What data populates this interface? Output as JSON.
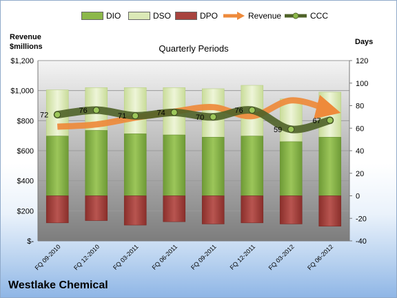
{
  "company": "Westlake Chemical",
  "colors": {
    "dio": "#8cb84a",
    "dso": "#dbe9b7",
    "dpo": "#a8443f",
    "revenue": "#ee8a3b",
    "ccc": "#4f6228"
  },
  "chart_data": {
    "type": "bar",
    "title": "Quarterly Periods",
    "ylabel_left": "Revenue $millions",
    "ylabel_right": "Days",
    "left_axis": {
      "min": 0,
      "max": 1200,
      "step": 200,
      "tick_labels": [
        "$-",
        "$200",
        "$400",
        "$600",
        "$800",
        "$1,000",
        "$1,200"
      ]
    },
    "right_axis": {
      "min": -40,
      "max": 120,
      "step": 20,
      "tick_labels": [
        "-40",
        "-20",
        "0",
        "20",
        "40",
        "60",
        "80",
        "100",
        "120"
      ]
    },
    "categories": [
      "FQ 09-2010",
      "FQ 12-2010",
      "FQ 03-2011",
      "FQ 06-2011",
      "FQ 09-2011",
      "FQ 12-2011",
      "FQ 03-2012",
      "FQ 06-2012"
    ],
    "legend": [
      "DIO",
      "DSO",
      "DPO",
      "Revenue",
      "CCC"
    ],
    "series": [
      {
        "name": "DIO",
        "axis": "right",
        "type": "stacked-bar",
        "values": [
          53,
          58,
          55,
          54,
          52,
          53,
          48,
          52
        ]
      },
      {
        "name": "DSO",
        "axis": "right",
        "type": "stacked-bar",
        "values": [
          41,
          38,
          41,
          42,
          43,
          45,
          38,
          40
        ]
      },
      {
        "name": "DPO",
        "axis": "right",
        "type": "bar-negative",
        "values": [
          -24,
          -22,
          -26,
          -23,
          -25,
          -24,
          -25,
          -27
        ]
      },
      {
        "name": "Revenue",
        "axis": "left",
        "type": "line",
        "values": [
          760,
          775,
          820,
          860,
          890,
          830,
          935,
          870
        ]
      },
      {
        "name": "CCC",
        "axis": "right",
        "type": "line",
        "values": [
          72,
          76,
          71,
          74,
          70,
          76,
          59,
          67
        ],
        "labels": [
          "72",
          "76",
          "71",
          "74",
          "70",
          "76",
          "59",
          "67"
        ]
      }
    ],
    "grid": true,
    "legend_position": "top"
  }
}
